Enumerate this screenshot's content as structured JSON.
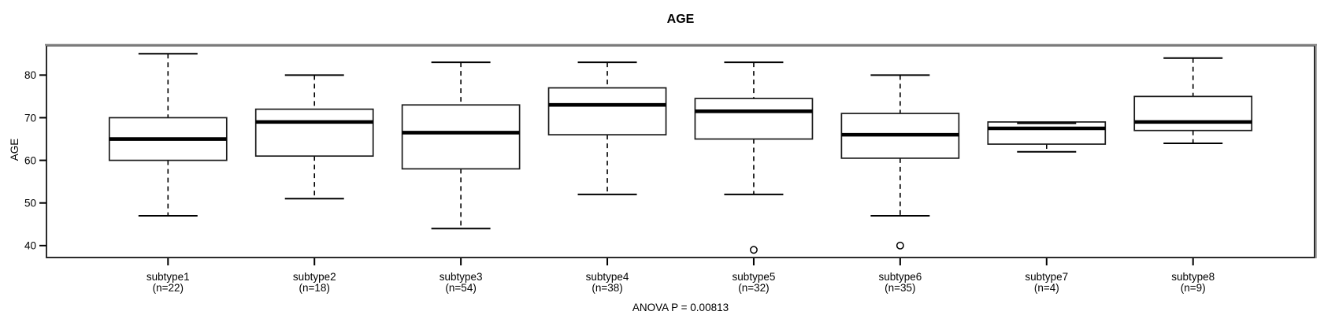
{
  "chart_data": {
    "type": "box",
    "title": "AGE",
    "ylabel": "AGE",
    "xlabel": "",
    "annotation": "ANOVA P = 0.00813",
    "legend": null,
    "grid": false,
    "y_axis": {
      "ticks": [
        40,
        50,
        60,
        70,
        80
      ],
      "range": [
        37.2,
        86.9
      ]
    },
    "groups": [
      {
        "label": "subtype1",
        "n_label": "(n=22)",
        "n": 22,
        "whisker_low": 47,
        "q1": 60,
        "median": 65,
        "q3": 70,
        "whisker_high": 85,
        "outliers": []
      },
      {
        "label": "subtype2",
        "n_label": "(n=18)",
        "n": 18,
        "whisker_low": 51,
        "q1": 61,
        "median": 69,
        "q3": 72,
        "whisker_high": 80,
        "outliers": []
      },
      {
        "label": "subtype3",
        "n_label": "(n=54)",
        "n": 54,
        "whisker_low": 44,
        "q1": 58,
        "median": 66.5,
        "q3": 73,
        "whisker_high": 83,
        "outliers": []
      },
      {
        "label": "subtype4",
        "n_label": "(n=38)",
        "n": 38,
        "whisker_low": 52,
        "q1": 66,
        "median": 73,
        "q3": 77,
        "whisker_high": 83,
        "outliers": []
      },
      {
        "label": "subtype5",
        "n_label": "(n=32)",
        "n": 32,
        "whisker_low": 52,
        "q1": 65,
        "median": 71.5,
        "q3": 74.5,
        "whisker_high": 83,
        "outliers": [
          39
        ]
      },
      {
        "label": "subtype6",
        "n_label": "(n=35)",
        "n": 35,
        "whisker_low": 47,
        "q1": 60.5,
        "median": 66,
        "q3": 71,
        "whisker_high": 80,
        "outliers": [
          40
        ]
      },
      {
        "label": "subtype7",
        "n_label": "(n=4)",
        "n": 4,
        "whisker_low": 62,
        "q1": 63.8,
        "median": 67.5,
        "q3": 69,
        "whisker_high": 69,
        "outliers": []
      },
      {
        "label": "subtype8",
        "n_label": "(n=9)",
        "n": 9,
        "whisker_low": 64,
        "q1": 67,
        "median": 69,
        "q3": 75,
        "whisker_high": 84,
        "outliers": []
      }
    ],
    "colors": {
      "line": "#000000",
      "box_border": "#1a1a1a",
      "box_fill": "#ffffff",
      "frame": "#2b2b2b",
      "frame_shade": "#8f8f8f",
      "background": "#ffffff"
    }
  }
}
